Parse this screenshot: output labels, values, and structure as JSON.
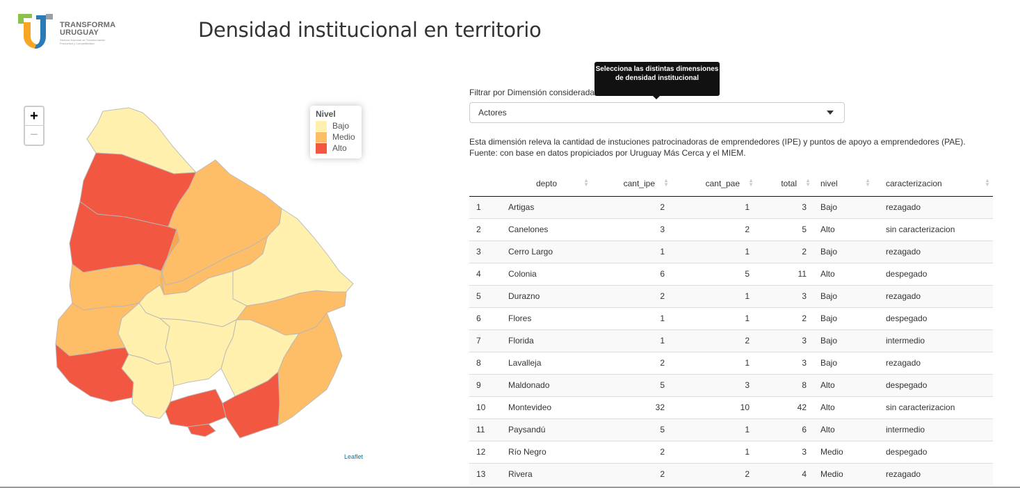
{
  "header": {
    "logo": {
      "title_line1": "TRANSFORMA",
      "title_line2": "URUGUAY",
      "subtitle": "Sistema Nacional de Transformación Productiva y Competitividad",
      "colors": {
        "left_bar": "#f6a623",
        "right_bar": "#2a7ab8",
        "top_left": "#8bc34a"
      }
    },
    "page_title": "Densidad institucional en territorio"
  },
  "map": {
    "zoom_in": "+",
    "zoom_out": "−",
    "legend": {
      "title": "Nivel",
      "items": [
        {
          "label": "Bajo",
          "color": "#FFEDA0"
        },
        {
          "label": "Medio",
          "color": "#FEB24C"
        },
        {
          "label": "Alto",
          "color": "#F03B20"
        }
      ]
    },
    "attribution": "Leaflet"
  },
  "filter": {
    "label": "Filtrar por Dimensión considerada",
    "tooltip": "Selecciona las distintas dimensiones de densidad institucional",
    "selected": "Actores",
    "description": "Esta dimensión releva la cantidad de instuciones patrocinadoras de emprendedores (IPE) y puntos de apoyo a emprendedores (PAE). Fuente: con base en datos propiciados por Uruguay Más Cerca y el MIEM."
  },
  "table": {
    "columns": [
      "",
      "depto",
      "cant_ipe",
      "cant_pae",
      "total",
      "nivel",
      "caracterizacion"
    ],
    "rows": [
      [
        "1",
        "Artigas",
        "2",
        "1",
        "3",
        "Bajo",
        "rezagado"
      ],
      [
        "2",
        "Canelones",
        "3",
        "2",
        "5",
        "Alto",
        "sin caracterizacion"
      ],
      [
        "3",
        "Cerro Largo",
        "1",
        "1",
        "2",
        "Bajo",
        "rezagado"
      ],
      [
        "4",
        "Colonia",
        "6",
        "5",
        "11",
        "Alto",
        "despegado"
      ],
      [
        "5",
        "Durazno",
        "2",
        "1",
        "3",
        "Bajo",
        "rezagado"
      ],
      [
        "6",
        "Flores",
        "1",
        "1",
        "2",
        "Bajo",
        "despegado"
      ],
      [
        "7",
        "Florida",
        "1",
        "2",
        "3",
        "Bajo",
        "intermedio"
      ],
      [
        "8",
        "Lavalleja",
        "2",
        "1",
        "3",
        "Bajo",
        "rezagado"
      ],
      [
        "9",
        "Maldonado",
        "5",
        "3",
        "8",
        "Alto",
        "despegado"
      ],
      [
        "10",
        "Montevideo",
        "32",
        "10",
        "42",
        "Alto",
        "sin caracterizacion"
      ],
      [
        "11",
        "Paysandú",
        "5",
        "1",
        "6",
        "Alto",
        "intermedio"
      ],
      [
        "12",
        "Río Negro",
        "2",
        "1",
        "3",
        "Medio",
        "despegado"
      ],
      [
        "13",
        "Rivera",
        "2",
        "2",
        "4",
        "Medio",
        "rezagado"
      ]
    ]
  }
}
